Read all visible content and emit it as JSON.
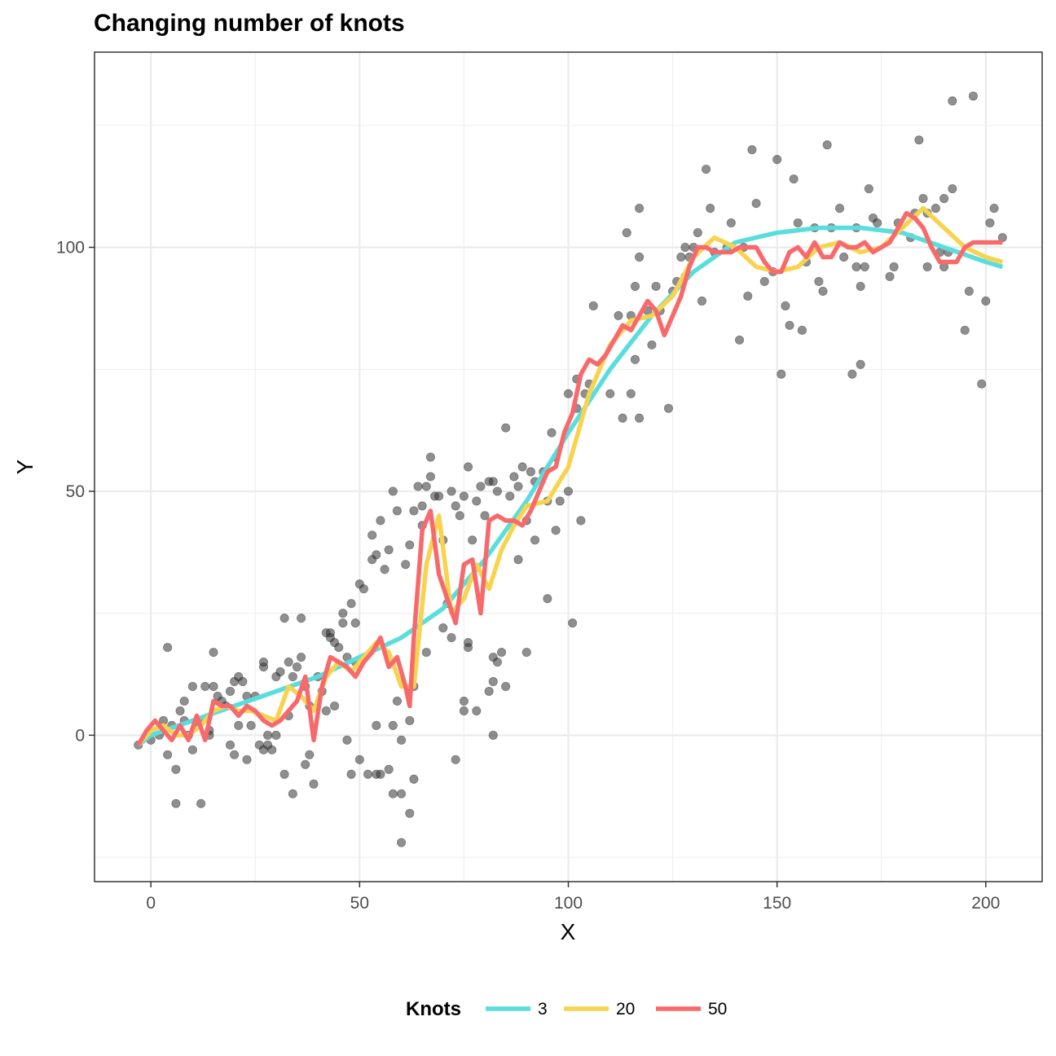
{
  "chart_data": {
    "type": "line",
    "title": "Changing number of knots",
    "xlabel": "X",
    "ylabel": "Y",
    "xlim": [
      -13.5,
      213.5
    ],
    "ylim": [
      -30,
      140
    ],
    "x_ticks": [
      0,
      50,
      100,
      150,
      200
    ],
    "y_ticks": [
      0,
      50,
      100
    ],
    "x_tick_labels": [
      "0",
      "50",
      "100",
      "150",
      "200"
    ],
    "y_tick_labels": [
      "0",
      "50",
      "100"
    ],
    "grid": true,
    "legend": {
      "title": "Knots",
      "position": "bottom",
      "entries": [
        "3",
        "20",
        "50"
      ]
    },
    "point_color": "#333333",
    "points": [
      [
        -3,
        -2
      ],
      [
        0,
        -1
      ],
      [
        2,
        0
      ],
      [
        3,
        3
      ],
      [
        4,
        18
      ],
      [
        4,
        -4
      ],
      [
        5,
        2
      ],
      [
        6,
        -7
      ],
      [
        6,
        -14
      ],
      [
        7,
        5
      ],
      [
        8,
        3
      ],
      [
        8,
        7
      ],
      [
        9,
        0
      ],
      [
        10,
        -3
      ],
      [
        10,
        10
      ],
      [
        11,
        2
      ],
      [
        12,
        -14
      ],
      [
        12,
        3
      ],
      [
        13,
        10
      ],
      [
        14,
        1
      ],
      [
        14,
        0
      ],
      [
        15,
        17
      ],
      [
        15,
        10
      ],
      [
        16,
        8
      ],
      [
        17,
        7
      ],
      [
        18,
        6
      ],
      [
        19,
        9
      ],
      [
        19,
        -2
      ],
      [
        20,
        11
      ],
      [
        20,
        -4
      ],
      [
        21,
        12
      ],
      [
        21,
        2
      ],
      [
        22,
        11
      ],
      [
        23,
        8
      ],
      [
        23,
        -5
      ],
      [
        24,
        2
      ],
      [
        25,
        8
      ],
      [
        26,
        -2
      ],
      [
        27,
        14
      ],
      [
        27,
        15
      ],
      [
        27,
        -3
      ],
      [
        28,
        0
      ],
      [
        28,
        -2
      ],
      [
        29,
        -3
      ],
      [
        30,
        12
      ],
      [
        30,
        0
      ],
      [
        31,
        13
      ],
      [
        32,
        24
      ],
      [
        32,
        -8
      ],
      [
        33,
        4
      ],
      [
        33,
        15
      ],
      [
        34,
        -12
      ],
      [
        34,
        12
      ],
      [
        35,
        14
      ],
      [
        36,
        24
      ],
      [
        36,
        16
      ],
      [
        37,
        -6
      ],
      [
        37,
        10
      ],
      [
        38,
        -4
      ],
      [
        38,
        6
      ],
      [
        39,
        -10
      ],
      [
        40,
        12
      ],
      [
        41,
        9
      ],
      [
        42,
        21
      ],
      [
        42,
        5
      ],
      [
        43,
        21
      ],
      [
        43,
        20
      ],
      [
        44,
        19
      ],
      [
        44,
        6
      ],
      [
        45,
        18
      ],
      [
        46,
        23
      ],
      [
        46,
        25
      ],
      [
        47,
        -1
      ],
      [
        47,
        16
      ],
      [
        48,
        27
      ],
      [
        48,
        -8
      ],
      [
        49,
        23
      ],
      [
        49,
        15
      ],
      [
        50,
        -5
      ],
      [
        50,
        31
      ],
      [
        51,
        30
      ],
      [
        52,
        -8
      ],
      [
        53,
        41
      ],
      [
        53,
        36
      ],
      [
        54,
        2
      ],
      [
        54,
        37
      ],
      [
        54,
        -8
      ],
      [
        55,
        -8
      ],
      [
        55,
        44
      ],
      [
        56,
        34
      ],
      [
        57,
        -7
      ],
      [
        57,
        38
      ],
      [
        58,
        -12
      ],
      [
        58,
        2
      ],
      [
        58,
        50
      ],
      [
        59,
        7
      ],
      [
        59,
        46
      ],
      [
        60,
        -22
      ],
      [
        60,
        -12
      ],
      [
        60,
        -1
      ],
      [
        61,
        35
      ],
      [
        62,
        39
      ],
      [
        62,
        -16
      ],
      [
        62,
        3
      ],
      [
        63,
        46
      ],
      [
        63,
        10
      ],
      [
        63,
        -9
      ],
      [
        64,
        51
      ],
      [
        65,
        43
      ],
      [
        65,
        47
      ],
      [
        66,
        51
      ],
      [
        66,
        17
      ],
      [
        67,
        53
      ],
      [
        67,
        57
      ],
      [
        68,
        49
      ],
      [
        69,
        49
      ],
      [
        70,
        40
      ],
      [
        70,
        22
      ],
      [
        71,
        27
      ],
      [
        72,
        50
      ],
      [
        72,
        20
      ],
      [
        73,
        -5
      ],
      [
        73,
        47
      ],
      [
        74,
        45
      ],
      [
        75,
        49
      ],
      [
        75,
        7
      ],
      [
        75,
        5
      ],
      [
        76,
        18
      ],
      [
        76,
        19
      ],
      [
        76,
        55
      ],
      [
        77,
        40
      ],
      [
        78,
        5
      ],
      [
        78,
        48
      ],
      [
        79,
        51
      ],
      [
        80,
        45
      ],
      [
        81,
        9
      ],
      [
        81,
        52
      ],
      [
        82,
        52
      ],
      [
        82,
        16
      ],
      [
        82,
        0
      ],
      [
        82,
        11
      ],
      [
        83,
        15
      ],
      [
        83,
        50
      ],
      [
        84,
        17
      ],
      [
        85,
        10
      ],
      [
        85,
        63
      ],
      [
        86,
        49
      ],
      [
        87,
        53
      ],
      [
        88,
        36
      ],
      [
        88,
        51
      ],
      [
        89,
        55
      ],
      [
        90,
        44
      ],
      [
        90,
        17
      ],
      [
        91,
        54
      ],
      [
        92,
        40
      ],
      [
        92,
        52
      ],
      [
        94,
        54
      ],
      [
        95,
        28
      ],
      [
        95,
        48
      ],
      [
        96,
        62
      ],
      [
        97,
        42
      ],
      [
        97,
        57
      ],
      [
        98,
        48
      ],
      [
        100,
        70
      ],
      [
        100,
        50
      ],
      [
        101,
        23
      ],
      [
        102,
        73
      ],
      [
        102,
        67
      ],
      [
        103,
        44
      ],
      [
        104,
        70
      ],
      [
        105,
        72
      ],
      [
        106,
        88
      ],
      [
        110,
        70
      ],
      [
        112,
        86
      ],
      [
        113,
        65
      ],
      [
        114,
        103
      ],
      [
        115,
        70
      ],
      [
        115,
        86
      ],
      [
        116,
        77
      ],
      [
        116,
        92
      ],
      [
        117,
        98
      ],
      [
        117,
        108
      ],
      [
        117,
        65
      ],
      [
        119,
        87
      ],
      [
        120,
        80
      ],
      [
        121,
        92
      ],
      [
        122,
        87
      ],
      [
        124,
        67
      ],
      [
        125,
        91
      ],
      [
        126,
        93
      ],
      [
        127,
        98
      ],
      [
        128,
        94
      ],
      [
        128,
        100
      ],
      [
        129,
        98
      ],
      [
        130,
        100
      ],
      [
        131,
        103
      ],
      [
        132,
        89
      ],
      [
        133,
        116
      ],
      [
        134,
        108
      ],
      [
        135,
        99
      ],
      [
        138,
        100
      ],
      [
        139,
        105
      ],
      [
        141,
        81
      ],
      [
        142,
        100
      ],
      [
        143,
        90
      ],
      [
        144,
        120
      ],
      [
        145,
        109
      ],
      [
        147,
        93
      ],
      [
        149,
        95
      ],
      [
        150,
        118
      ],
      [
        151,
        74
      ],
      [
        152,
        88
      ],
      [
        153,
        84
      ],
      [
        154,
        114
      ],
      [
        155,
        105
      ],
      [
        156,
        83
      ],
      [
        157,
        97
      ],
      [
        159,
        104
      ],
      [
        160,
        93
      ],
      [
        161,
        91
      ],
      [
        162,
        121
      ],
      [
        163,
        104
      ],
      [
        165,
        108
      ],
      [
        166,
        98
      ],
      [
        168,
        74
      ],
      [
        169,
        104
      ],
      [
        169,
        96
      ],
      [
        170,
        92
      ],
      [
        170,
        76
      ],
      [
        171,
        96
      ],
      [
        172,
        112
      ],
      [
        173,
        106
      ],
      [
        174,
        105
      ],
      [
        177,
        94
      ],
      [
        178,
        96
      ],
      [
        179,
        105
      ],
      [
        182,
        102
      ],
      [
        183,
        107
      ],
      [
        184,
        122
      ],
      [
        185,
        110
      ],
      [
        186,
        96
      ],
      [
        186,
        107
      ],
      [
        188,
        108
      ],
      [
        189,
        99
      ],
      [
        190,
        110
      ],
      [
        190,
        96
      ],
      [
        191,
        99
      ],
      [
        192,
        112
      ],
      [
        192,
        130
      ],
      [
        195,
        83
      ],
      [
        196,
        91
      ],
      [
        197,
        131
      ],
      [
        199,
        72
      ],
      [
        200,
        89
      ],
      [
        201,
        105
      ],
      [
        202,
        108
      ],
      [
        204,
        102
      ]
    ],
    "series": [
      {
        "name": "3",
        "color": "#5ADDDD",
        "x": [
          -3,
          0,
          10,
          20,
          30,
          40,
          50,
          60,
          70,
          80,
          90,
          100,
          110,
          120,
          130,
          140,
          150,
          160,
          170,
          180,
          190,
          200,
          204
        ],
        "y": [
          -2,
          0,
          3,
          6,
          9,
          12,
          16,
          20,
          26,
          36,
          48,
          62,
          75,
          86,
          95,
          101,
          103,
          104,
          104,
          103,
          100,
          97,
          96
        ]
      },
      {
        "name": "20",
        "color": "#F7D34F",
        "x": [
          -3,
          0,
          3,
          6,
          9,
          12,
          15,
          18,
          21,
          24,
          27,
          30,
          33,
          36,
          39,
          42,
          45,
          48,
          51,
          54,
          57,
          60,
          63,
          66,
          69,
          72,
          75,
          78,
          81,
          84,
          87,
          90,
          95,
          100,
          105,
          110,
          115,
          120,
          125,
          130,
          135,
          140,
          145,
          150,
          155,
          160,
          165,
          170,
          175,
          180,
          185,
          190,
          195,
          200,
          204
        ],
        "y": [
          -2,
          1,
          2,
          0,
          0,
          2,
          5,
          6,
          5,
          5,
          4,
          3,
          10,
          8,
          5,
          12,
          15,
          13,
          16,
          19,
          17,
          10,
          10,
          35,
          45,
          25,
          28,
          35,
          30,
          38,
          43,
          47,
          48,
          55,
          70,
          80,
          85,
          86,
          90,
          98,
          102,
          100,
          96,
          95,
          96,
          100,
          101,
          99,
          100,
          104,
          108,
          104,
          100,
          98,
          97
        ]
      },
      {
        "name": "50",
        "color": "#F8696B",
        "x": [
          -3,
          -1,
          1,
          3,
          5,
          7,
          9,
          11,
          13,
          15,
          17,
          19,
          21,
          23,
          25,
          27,
          29,
          31,
          33,
          35,
          37,
          39,
          41,
          43,
          45,
          47,
          49,
          51,
          53,
          55,
          57,
          59,
          61,
          62,
          63,
          65,
          67,
          69,
          71,
          73,
          75,
          77,
          79,
          81,
          83,
          85,
          87,
          89,
          91,
          93,
          95,
          97,
          99,
          101,
          103,
          105,
          107,
          109,
          111,
          113,
          115,
          117,
          119,
          121,
          123,
          125,
          127,
          129,
          131,
          133,
          135,
          137,
          139,
          141,
          143,
          145,
          147,
          149,
          151,
          153,
          155,
          157,
          159,
          161,
          163,
          165,
          167,
          169,
          171,
          173,
          175,
          177,
          179,
          181,
          183,
          185,
          187,
          189,
          191,
          193,
          195,
          197,
          199,
          201,
          204
        ],
        "y": [
          -2,
          1,
          3,
          1,
          -1,
          2,
          -1,
          4,
          -1,
          7,
          6,
          6,
          4,
          6,
          5,
          3,
          2,
          3,
          5,
          7,
          12,
          -1,
          10,
          16,
          15,
          14,
          12,
          15,
          17,
          20,
          14,
          16,
          10,
          6,
          20,
          42,
          46,
          33,
          28,
          23,
          35,
          36,
          25,
          44,
          45,
          44,
          44,
          43,
          46,
          50,
          54,
          55,
          62,
          66,
          74,
          77,
          76,
          78,
          81,
          84,
          83,
          86,
          89,
          87,
          82,
          86,
          90,
          96,
          100,
          100,
          99,
          99,
          99,
          100,
          100,
          100,
          97,
          95,
          95,
          99,
          100,
          98,
          101,
          98,
          98,
          101,
          100,
          100,
          101,
          99,
          100,
          101,
          104,
          107,
          106,
          104,
          100,
          97,
          97,
          97,
          100,
          101,
          101,
          101,
          101
        ]
      }
    ]
  }
}
